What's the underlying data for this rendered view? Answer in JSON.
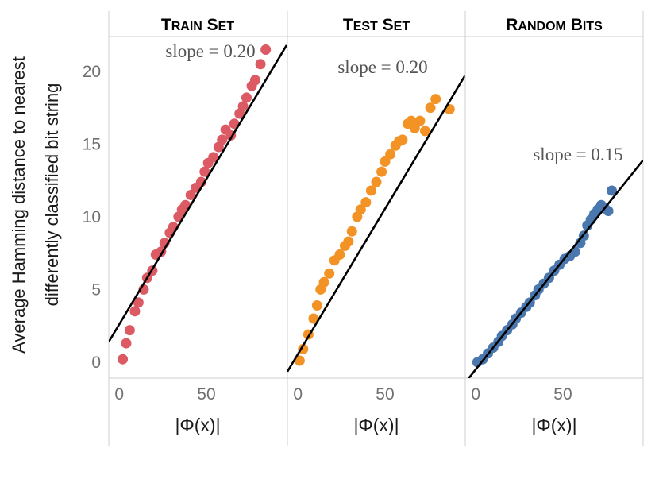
{
  "chart_data": {
    "type": "scatter",
    "ylabel_line1": "Average Hamming distance to nearest",
    "ylabel_line2": "differently classified bit string",
    "xlabel": "|Φ(x)|",
    "xlim": [
      -6,
      96
    ],
    "ylim": [
      -1.1,
      22.4
    ],
    "xticks": [
      0,
      50
    ],
    "yticks": [
      0,
      5,
      10,
      15,
      20
    ],
    "grid": false,
    "panels": [
      {
        "title": "Train Set",
        "color": "#db5a63",
        "annotation": "slope = 0.20",
        "fit_line": {
          "slope": 0.2,
          "intercept": 2.6
        },
        "points": [
          [
            2,
            0.2
          ],
          [
            4,
            1.3
          ],
          [
            6,
            2.2
          ],
          [
            9,
            3.5
          ],
          [
            11,
            4.1
          ],
          [
            14,
            5.0
          ],
          [
            16,
            5.8
          ],
          [
            19,
            6.3
          ],
          [
            21,
            7.4
          ],
          [
            24,
            7.6
          ],
          [
            26,
            8.2
          ],
          [
            29,
            8.9
          ],
          [
            31,
            9.3
          ],
          [
            34,
            10.0
          ],
          [
            36,
            10.5
          ],
          [
            38,
            10.8
          ],
          [
            41,
            11.5
          ],
          [
            44,
            12.0
          ],
          [
            47,
            12.4
          ],
          [
            49,
            13.1
          ],
          [
            51,
            13.7
          ],
          [
            54,
            14.1
          ],
          [
            57,
            14.8
          ],
          [
            59,
            15.3
          ],
          [
            61,
            16.0
          ],
          [
            64,
            15.6
          ],
          [
            66,
            16.4
          ],
          [
            69,
            17.1
          ],
          [
            71,
            17.6
          ],
          [
            73,
            18.2
          ],
          [
            76,
            19.0
          ],
          [
            78,
            19.4
          ],
          [
            81,
            20.5
          ],
          [
            84,
            21.5
          ]
        ]
      },
      {
        "title": "Test Set",
        "color": "#f39325",
        "annotation": "slope = 0.20",
        "fit_line": {
          "slope": 0.2,
          "intercept": 0.55
        },
        "points": [
          [
            1,
            0.1
          ],
          [
            3,
            0.9
          ],
          [
            6,
            1.9
          ],
          [
            9,
            3.0
          ],
          [
            11,
            3.9
          ],
          [
            13,
            5.0
          ],
          [
            15,
            5.5
          ],
          [
            18,
            6.1
          ],
          [
            21,
            7.0
          ],
          [
            24,
            7.4
          ],
          [
            27,
            8.0
          ],
          [
            29,
            8.3
          ],
          [
            31,
            9.0
          ],
          [
            34,
            10.0
          ],
          [
            36,
            10.5
          ],
          [
            39,
            11.0
          ],
          [
            42,
            11.8
          ],
          [
            45,
            12.4
          ],
          [
            48,
            13.1
          ],
          [
            50,
            13.8
          ],
          [
            53,
            14.3
          ],
          [
            56,
            14.9
          ],
          [
            58,
            15.2
          ],
          [
            60,
            15.3
          ],
          [
            63,
            16.4
          ],
          [
            65,
            16.6
          ],
          [
            67,
            16.1
          ],
          [
            70,
            16.6
          ],
          [
            73,
            15.9
          ],
          [
            76,
            17.5
          ],
          [
            79,
            18.1
          ],
          [
            87,
            17.4
          ]
        ]
      },
      {
        "title": "Random Bits",
        "color": "#4a78ae",
        "annotation": "slope = 0.15",
        "fit_line": {
          "slope": 0.15,
          "intercept": -0.5
        },
        "points": [
          [
            1,
            0.0
          ],
          [
            4,
            0.2
          ],
          [
            7,
            0.6
          ],
          [
            10,
            1.0
          ],
          [
            13,
            1.4
          ],
          [
            15,
            1.8
          ],
          [
            18,
            2.2
          ],
          [
            21,
            2.6
          ],
          [
            23,
            3.0
          ],
          [
            26,
            3.4
          ],
          [
            29,
            3.8
          ],
          [
            31,
            4.1
          ],
          [
            34,
            4.6
          ],
          [
            36,
            5.0
          ],
          [
            39,
            5.4
          ],
          [
            42,
            5.8
          ],
          [
            45,
            6.3
          ],
          [
            48,
            6.7
          ],
          [
            51,
            7.1
          ],
          [
            54,
            7.3
          ],
          [
            57,
            7.6
          ],
          [
            60,
            8.2
          ],
          [
            62,
            8.7
          ],
          [
            64,
            9.4
          ],
          [
            66,
            9.8
          ],
          [
            68,
            10.2
          ],
          [
            70,
            10.5
          ],
          [
            72,
            10.8
          ],
          [
            74,
            10.6
          ],
          [
            76,
            10.4
          ],
          [
            78,
            11.8
          ]
        ]
      }
    ]
  }
}
